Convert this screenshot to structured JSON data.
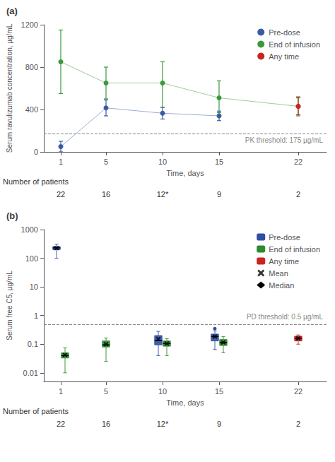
{
  "chart_data": [
    {
      "type": "scatter",
      "title": "(a)",
      "x": [
        1,
        5,
        10,
        15,
        22
      ],
      "xlim": [
        -0.5,
        24.5
      ],
      "xticks": [
        1,
        5,
        10,
        15,
        22
      ],
      "ylim": [
        0,
        1200
      ],
      "yticks": [
        0,
        400,
        800,
        1200
      ],
      "xlabel": "Time, days",
      "ylabel": "Serum ravulizumab concentration, µg/mL",
      "grid": false,
      "legend": "upper right",
      "series": [
        {
          "name": "Pre-dose",
          "color": "#3a5aa8",
          "marker": "circle",
          "line_style": "solid",
          "values": [
            50,
            415,
            365,
            340,
            null
          ],
          "error_low": [
            50,
            75,
            55,
            45,
            null
          ],
          "error_high": [
            50,
            75,
            55,
            45,
            null
          ]
        },
        {
          "name": "End of infusion",
          "color": "#3a9a3a",
          "marker": "circle",
          "line_style": "solid",
          "values": [
            850,
            650,
            650,
            510,
            430
          ],
          "error_low": [
            300,
            150,
            230,
            140,
            90
          ],
          "error_high": [
            300,
            150,
            200,
            160,
            90
          ]
        },
        {
          "name": "Any time",
          "color": "#cc2222",
          "marker": "circle",
          "values": [
            null,
            null,
            null,
            null,
            430
          ],
          "error_low": [
            null,
            null,
            null,
            null,
            80
          ],
          "error_high": [
            null,
            null,
            null,
            null,
            80
          ]
        }
      ],
      "threshold": {
        "value": 175,
        "label": "PK threshold: 175 µg/mL",
        "color": "#888888",
        "line_style": "dashed"
      },
      "patient_counts_label": "Number of patients",
      "patient_counts": [
        "22",
        "16",
        "12*",
        "9",
        "2"
      ]
    },
    {
      "type": "box",
      "title": "(b)",
      "x": [
        1,
        5,
        10,
        15,
        22
      ],
      "xlim": [
        -0.5,
        24.5
      ],
      "xticks": [
        1,
        5,
        10,
        15,
        22
      ],
      "log": "y",
      "ylim": [
        0.005,
        1000
      ],
      "yticks": [
        0.01,
        0.1,
        1,
        10,
        100,
        1000
      ],
      "xlabel": "Time, days",
      "ylabel": "Serum free C5, µg/mL",
      "grid": false,
      "legend": "upper right",
      "series": [
        {
          "name": "Pre-dose",
          "color": "#2e4fa3",
          "boxes": [
            {
              "q1": 200,
              "median": 230,
              "q3": 255,
              "whislo": 100,
              "whishi": 310,
              "mean": 225
            },
            null,
            {
              "q1": 0.095,
              "median": 0.135,
              "q3": 0.2,
              "whislo": 0.04,
              "whishi": 0.28,
              "mean": 0.15
            },
            {
              "q1": 0.13,
              "median": 0.185,
              "q3": 0.225,
              "whislo": 0.065,
              "whishi": 0.29,
              "mean": 0.185
            },
            null
          ],
          "outliers": [
            null,
            null,
            null,
            0.35,
            null
          ]
        },
        {
          "name": "End of infusion",
          "color": "#2e8a2e",
          "boxes": [
            {
              "q1": 0.033,
              "median": 0.04,
              "q3": 0.05,
              "whislo": 0.01,
              "whishi": 0.075,
              "mean": 0.042
            },
            {
              "q1": 0.08,
              "median": 0.095,
              "q3": 0.13,
              "whislo": 0.025,
              "whishi": 0.165,
              "mean": 0.1
            },
            {
              "q1": 0.085,
              "median": 0.105,
              "q3": 0.13,
              "whislo": 0.04,
              "whishi": 0.155,
              "mean": 0.105
            },
            {
              "q1": 0.09,
              "median": 0.115,
              "q3": 0.145,
              "whislo": 0.05,
              "whishi": 0.185,
              "mean": 0.115
            },
            null
          ]
        },
        {
          "name": "Any time",
          "color": "#cc2222",
          "boxes": [
            null,
            null,
            null,
            null,
            {
              "q1": 0.13,
              "median": 0.16,
              "q3": 0.19,
              "whislo": 0.1,
              "whishi": 0.21,
              "mean": 0.16
            }
          ]
        }
      ],
      "mean_marker": {
        "name": "Mean",
        "marker": "x",
        "color": "#000000"
      },
      "median_marker": {
        "name": "Median",
        "marker": "diamond",
        "color": "#000000"
      },
      "threshold": {
        "value": 0.5,
        "label": "PD threshold: 0.5 µg/mL",
        "color": "#888888",
        "line_style": "dashed"
      },
      "patient_counts_label": "Number of patients",
      "patient_counts": [
        "22",
        "16",
        "12*",
        "9",
        "2"
      ]
    }
  ]
}
